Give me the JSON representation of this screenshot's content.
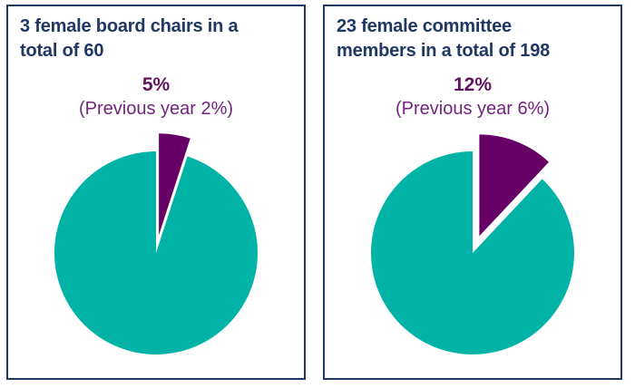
{
  "colors": {
    "teal": "#00b3a6",
    "purple": "#660067",
    "navy_text": "#1f3864",
    "percent_text": "#5e155e",
    "previous_text": "#71257c",
    "panel_border": "#1f3864",
    "background": "#ffffff"
  },
  "chart_data": [
    {
      "type": "pie",
      "title": "3 female board chairs in a\ntotal of 60",
      "percent_label": "5%",
      "previous_label": "(Previous year 2%)",
      "start_angle_deg": 0,
      "clockwise": true,
      "legend": "none",
      "slices": [
        {
          "name": "female-board-chairs",
          "value": 5,
          "color": "#660067",
          "exploded": true
        },
        {
          "name": "remainder",
          "value": 95,
          "color": "#00b3a6",
          "exploded": false
        }
      ]
    },
    {
      "type": "pie",
      "title": "23 female committee\nmembers in a total of 198",
      "percent_label": "12%",
      "previous_label": "(Previous year 6%)",
      "start_angle_deg": 0,
      "clockwise": true,
      "legend": "none",
      "slices": [
        {
          "name": "female-committee-members",
          "value": 12,
          "color": "#660067",
          "exploded": true
        },
        {
          "name": "remainder",
          "value": 88,
          "color": "#00b3a6",
          "exploded": false
        }
      ]
    }
  ]
}
